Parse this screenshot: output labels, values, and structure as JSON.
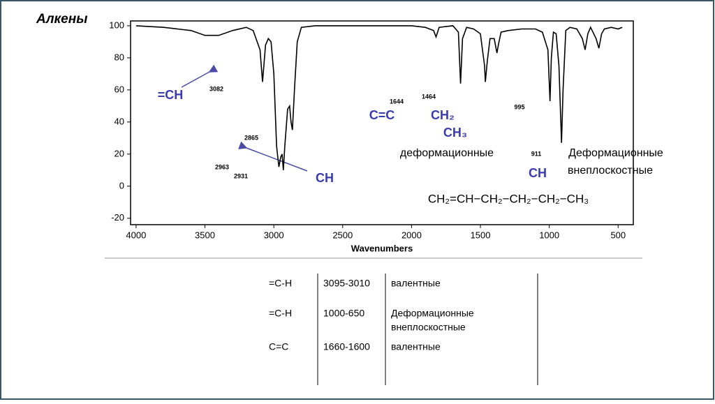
{
  "slide_title": "Алкены",
  "chart_data": {
    "type": "line",
    "xlabel": "Wavenumbers",
    "xlim": [
      4040,
      390
    ],
    "ylim": [
      -24,
      103
    ],
    "xticks": [
      4000,
      3500,
      3000,
      2500,
      2000,
      1500,
      1000,
      500
    ],
    "yticks": [
      -20,
      0,
      20,
      40,
      60,
      80,
      100
    ],
    "color": "#000000",
    "x": [
      4000,
      3800,
      3600,
      3500,
      3400,
      3300,
      3200,
      3150,
      3100,
      3082,
      3060,
      3040,
      3020,
      3000,
      2980,
      2963,
      2950,
      2940,
      2931,
      2920,
      2900,
      2885,
      2875,
      2865,
      2850,
      2830,
      2800,
      2700,
      2500,
      2200,
      2000,
      1900,
      1840,
      1822,
      1800,
      1700,
      1660,
      1644,
      1630,
      1600,
      1550,
      1500,
      1470,
      1464,
      1450,
      1430,
      1400,
      1380,
      1370,
      1350,
      1300,
      1200,
      1100,
      1050,
      1010,
      995,
      985,
      970,
      950,
      930,
      911,
      900,
      880,
      850,
      800,
      760,
      740,
      720,
      700,
      660,
      640,
      620,
      600,
      550,
      500,
      470
    ],
    "values": [
      100,
      99,
      97,
      94,
      94,
      97,
      99,
      97,
      85,
      65,
      88,
      92,
      90,
      70,
      25,
      12,
      18,
      20,
      10,
      25,
      48,
      50,
      40,
      35,
      60,
      90,
      99,
      100,
      100,
      100,
      100,
      99,
      97,
      93,
      99,
      100,
      96,
      64,
      92,
      99,
      98,
      95,
      75,
      65,
      78,
      92,
      92,
      83,
      88,
      96,
      97,
      98,
      98,
      96,
      85,
      53,
      80,
      96,
      95,
      75,
      27,
      60,
      97,
      99,
      98,
      92,
      85,
      95,
      99,
      92,
      86,
      95,
      98,
      99,
      98,
      99
    ],
    "peak_labels": [
      3082,
      2963,
      2931,
      2865,
      1644,
      1464,
      995,
      911
    ],
    "annotations": [
      "=CH",
      "CH",
      "C=C",
      "CH₂",
      "CH₃",
      "деформационные",
      "Деформационные",
      "внеплоскостные",
      "CH",
      "CH₂=CH−CH₂−CH₂−CH₂−CH₃"
    ]
  },
  "table": {
    "rows": [
      [
        "=C-H",
        "3095-3010",
        "валентные"
      ],
      [
        "=C-H",
        "1000-650",
        "Деформационные",
        "внеплоскостные"
      ],
      [
        "C=C",
        "1660-1600",
        "валентные"
      ]
    ]
  }
}
